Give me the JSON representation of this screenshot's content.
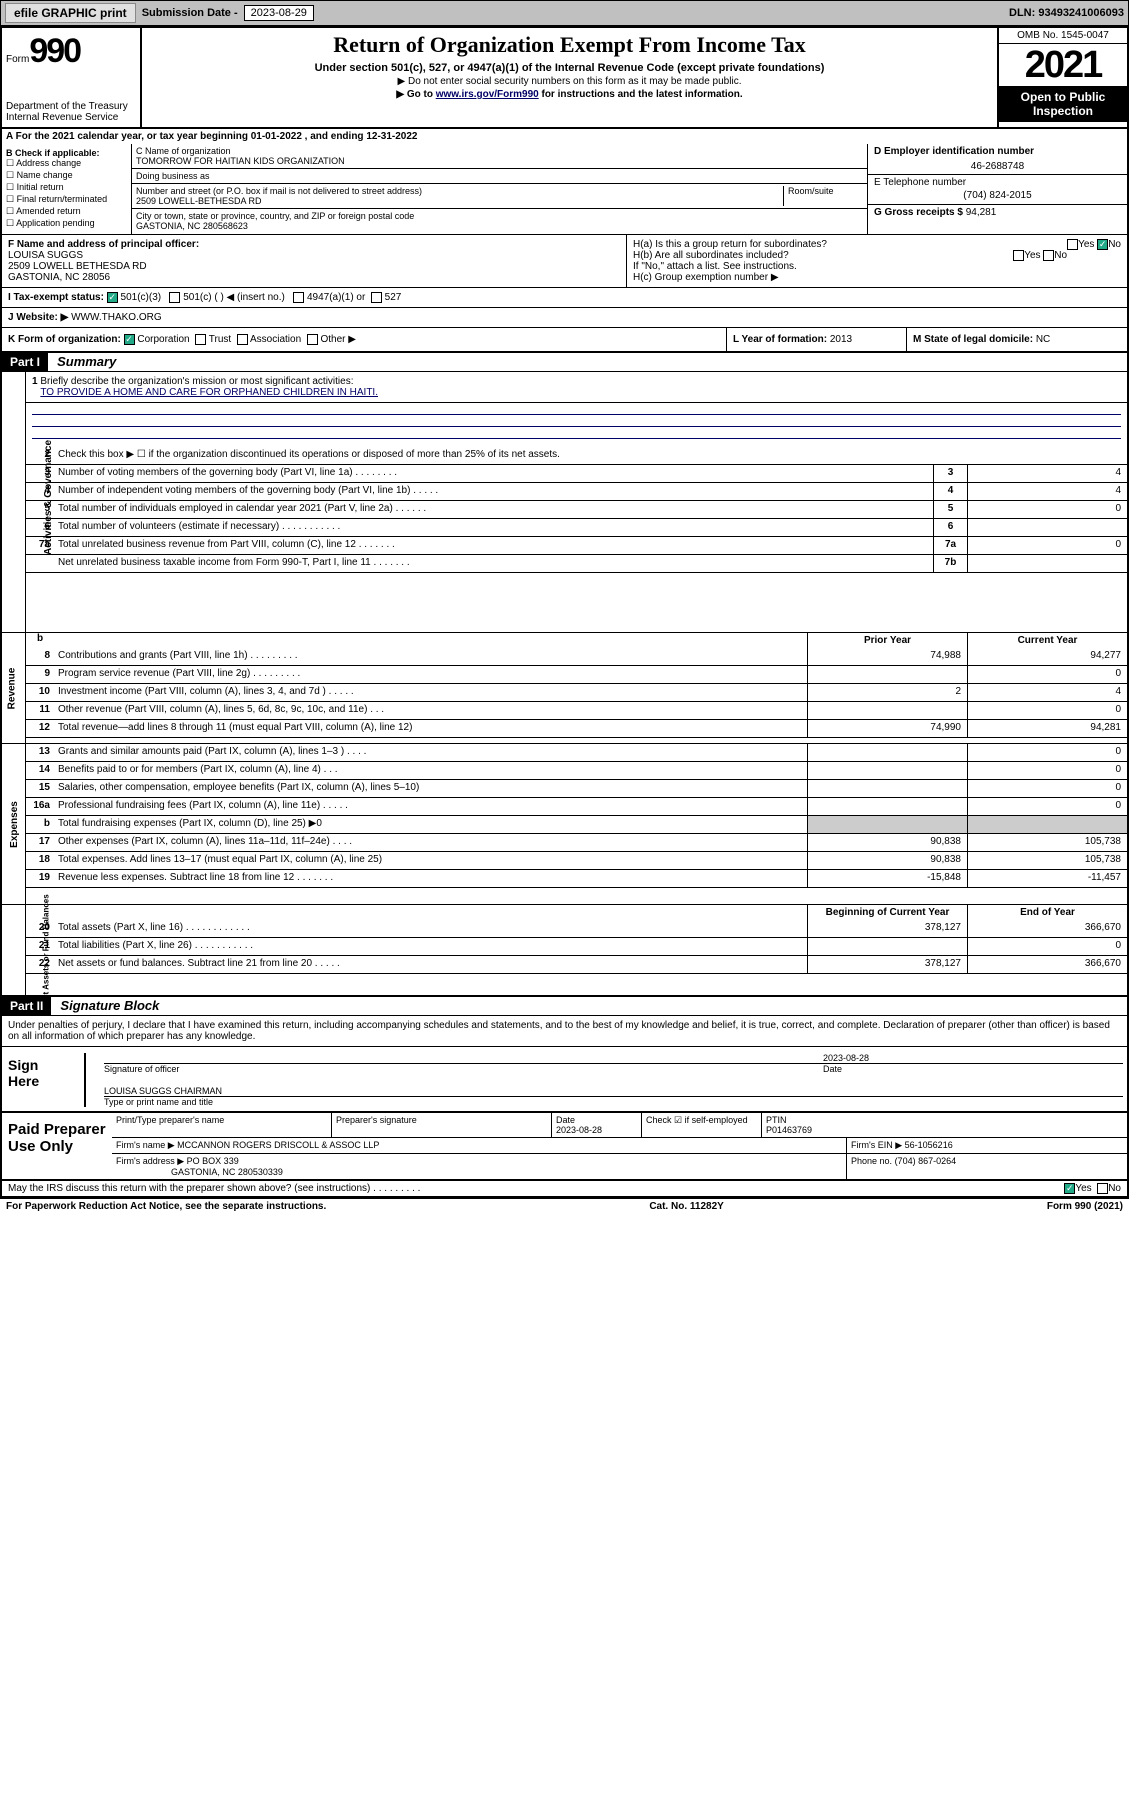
{
  "topbar": {
    "efile": "efile GRAPHIC print",
    "sub_label": "Submission Date - ",
    "sub_date": "2023-08-29",
    "dln": "DLN: 93493241006093"
  },
  "header": {
    "form_small": "Form",
    "form_big": "990",
    "dept": "Department of the Treasury",
    "irs": "Internal Revenue Service",
    "title": "Return of Organization Exempt From Income Tax",
    "sub": "Under section 501(c), 527, or 4947(a)(1) of the Internal Revenue Code (except private foundations)",
    "note1": "▶ Do not enter social security numbers on this form as it may be made public.",
    "note2a": "▶ Go to ",
    "note2link": "www.irs.gov/Form990",
    "note2b": " for instructions and the latest information.",
    "omb": "OMB No. 1545-0047",
    "year": "2021",
    "inspect": "Open to Public Inspection"
  },
  "a": {
    "text": "A For the 2021 calendar year, or tax year beginning 01-01-2022   , and ending 12-31-2022"
  },
  "b": {
    "label": "B Check if applicable:",
    "opts": [
      "Address change",
      "Name change",
      "Initial return",
      "Final return/terminated",
      "Amended return",
      "Application pending"
    ]
  },
  "c": {
    "name_label": "C Name of organization",
    "name": "TOMORROW FOR HAITIAN KIDS ORGANIZATION",
    "dba_label": "Doing business as",
    "street_label": "Number and street (or P.O. box if mail is not delivered to street address)",
    "room_label": "Room/suite",
    "street": "2509 LOWELL-BETHESDA RD",
    "city_label": "City or town, state or province, country, and ZIP or foreign postal code",
    "city": "GASTONIA, NC 280568623"
  },
  "d": {
    "label": "D Employer identification number",
    "value": "46-2688748"
  },
  "e": {
    "label": "E Telephone number",
    "value": "(704) 824-2015"
  },
  "g": {
    "label": "G Gross receipts $",
    "value": "94,281"
  },
  "f": {
    "label": "F Name and address of principal officer:",
    "name": "LOUISA SUGGS",
    "addr1": "2509 LOWELL BETHESDA RD",
    "addr2": "GASTONIA, NC  28056"
  },
  "h": {
    "a": "H(a)  Is this a group return for subordinates?",
    "b": "H(b)  Are all subordinates included?",
    "b_note": "If \"No,\" attach a list. See instructions.",
    "c": "H(c)  Group exemption number ▶",
    "yes": "Yes",
    "no": "No"
  },
  "i": {
    "label": "I   Tax-exempt status:",
    "o1": "501(c)(3)",
    "o2": "501(c) (  ) ◀ (insert no.)",
    "o3": "4947(a)(1) or",
    "o4": "527"
  },
  "j": {
    "label": "J   Website: ▶",
    "value": "WWW.THAKO.ORG"
  },
  "k": {
    "label": "K Form of organization:",
    "o1": "Corporation",
    "o2": "Trust",
    "o3": "Association",
    "o4": "Other ▶"
  },
  "l": {
    "label": "L Year of formation:",
    "value": "2013"
  },
  "m": {
    "label": "M State of legal domicile:",
    "value": "NC"
  },
  "part1": {
    "tag": "Part I",
    "title": "Summary"
  },
  "summary": {
    "q1": "Briefly describe the organization's mission or most significant activities:",
    "mission": "TO PROVIDE A HOME AND CARE FOR ORPHANED CHILDREN IN HAITI.",
    "q2": "Check this box ▶ ☐  if the organization discontinued its operations or disposed of more than 25% of its net assets.",
    "lines": [
      {
        "n": "3",
        "d": "Number of voting members of the governing body (Part VI, line 1a)  .    .    .    .    .    .    .    .",
        "bn": "3",
        "v": "4"
      },
      {
        "n": "4",
        "d": "Number of independent voting members of the governing body (Part VI, line 1b)  .    .    .    .    .",
        "bn": "4",
        "v": "4"
      },
      {
        "n": "5",
        "d": "Total number of individuals employed in calendar year 2021 (Part V, line 2a)  .    .    .    .    .    .",
        "bn": "5",
        "v": "0"
      },
      {
        "n": "6",
        "d": "Total number of volunteers (estimate if necessary)  .    .    .    .    .    .    .    .    .    .    .",
        "bn": "6",
        "v": ""
      },
      {
        "n": "7a",
        "d": "Total unrelated business revenue from Part VIII, column (C), line 12  .    .    .    .    .    .    .",
        "bn": "7a",
        "v": "0"
      },
      {
        "n": "",
        "d": "Net unrelated business taxable income from Form 990-T, Part I, line 11  .    .    .    .    .    .    .",
        "bn": "7b",
        "v": ""
      }
    ],
    "col_prior": "Prior Year",
    "col_current": "Current Year",
    "rev": [
      {
        "n": "8",
        "d": "Contributions and grants (Part VIII, line 1h)  .    .    .    .    .    .    .    .    .",
        "p": "74,988",
        "c": "94,277"
      },
      {
        "n": "9",
        "d": "Program service revenue (Part VIII, line 2g)  .    .    .    .    .    .    .    .    .",
        "p": "",
        "c": "0"
      },
      {
        "n": "10",
        "d": "Investment income (Part VIII, column (A), lines 3, 4, and 7d )  .    .    .    .    .",
        "p": "2",
        "c": "4"
      },
      {
        "n": "11",
        "d": "Other revenue (Part VIII, column (A), lines 5, 6d, 8c, 9c, 10c, and 11e)  .    .    .",
        "p": "",
        "c": "0"
      },
      {
        "n": "12",
        "d": "Total revenue—add lines 8 through 11 (must equal Part VIII, column (A), line 12)",
        "p": "74,990",
        "c": "94,281"
      }
    ],
    "exp": [
      {
        "n": "13",
        "d": "Grants and similar amounts paid (Part IX, column (A), lines 1–3 )  .    .    .    .",
        "p": "",
        "c": "0"
      },
      {
        "n": "14",
        "d": "Benefits paid to or for members (Part IX, column (A), line 4)  .    .    .",
        "p": "",
        "c": "0"
      },
      {
        "n": "15",
        "d": "Salaries, other compensation, employee benefits (Part IX, column (A), lines 5–10)",
        "p": "",
        "c": "0"
      },
      {
        "n": "16a",
        "d": "Professional fundraising fees (Part IX, column (A), line 11e)  .    .    .    .    .",
        "p": "",
        "c": "0"
      },
      {
        "n": "b",
        "d": "Total fundraising expenses (Part IX, column (D), line 25)  ▶0",
        "p": "shade",
        "c": "shade"
      },
      {
        "n": "17",
        "d": "Other expenses (Part IX, column (A), lines 11a–11d, 11f–24e)  .    .    .    .",
        "p": "90,838",
        "c": "105,738"
      },
      {
        "n": "18",
        "d": "Total expenses. Add lines 13–17 (must equal Part IX, column (A), line 25)",
        "p": "90,838",
        "c": "105,738"
      },
      {
        "n": "19",
        "d": "Revenue less expenses. Subtract line 18 from line 12  .    .    .    .    .    .    .",
        "p": "-15,848",
        "c": "-11,457"
      }
    ],
    "col_boy": "Beginning of Current Year",
    "col_eoy": "End of Year",
    "net": [
      {
        "n": "20",
        "d": "Total assets (Part X, line 16)  .    .    .    .    .    .    .    .    .    .    .    .",
        "p": "378,127",
        "c": "366,670"
      },
      {
        "n": "21",
        "d": "Total liabilities (Part X, line 26)  .    .    .    .    .    .    .    .    .    .    .",
        "p": "",
        "c": "0"
      },
      {
        "n": "22",
        "d": "Net assets or fund balances. Subtract line 21 from line 20  .    .    .    .    .",
        "p": "378,127",
        "c": "366,670"
      }
    ],
    "vtabs": {
      "gov": "Activities & Governance",
      "rev": "Revenue",
      "exp": "Expenses",
      "net": "Net Assets or Fund Balances"
    }
  },
  "part2": {
    "tag": "Part II",
    "title": "Signature Block"
  },
  "sig": {
    "intro": "Under penalties of perjury, I declare that I have examined this return, including accompanying schedules and statements, and to the best of my knowledge and belief, it is true, correct, and complete. Declaration of preparer (other than officer) is based on all information of which preparer has any knowledge.",
    "sign_here": "Sign Here",
    "sig_officer": "Signature of officer",
    "date_label": "Date",
    "date": "2023-08-28",
    "name_title": "LOUISA SUGGS CHAIRMAN",
    "type_label": "Type or print name and title"
  },
  "paid": {
    "label": "Paid Preparer Use Only",
    "h1": "Print/Type preparer's name",
    "h2": "Preparer's signature",
    "h3": "Date",
    "h3v": "2023-08-28",
    "h4": "Check ☑ if self-employed",
    "h5": "PTIN",
    "h5v": "P01463769",
    "firm_name_label": "Firm's name     ▶",
    "firm_name": "MCCANNON ROGERS DRISCOLL & ASSOC LLP",
    "firm_ein_label": "Firm's EIN ▶",
    "firm_ein": "56-1056216",
    "firm_addr_label": "Firm's address ▶",
    "firm_addr1": "PO BOX 339",
    "firm_addr2": "GASTONIA, NC  280530339",
    "phone_label": "Phone no.",
    "phone": "(704) 867-0264"
  },
  "footer": {
    "discuss": "May the IRS discuss this return with the preparer shown above? (see instructions)  .    .    .    .    .    .    .    .    .",
    "yes": "Yes",
    "no": "No",
    "pra": "For Paperwork Reduction Act Notice, see the separate instructions.",
    "cat": "Cat. No. 11282Y",
    "form": "Form 990 (2021)"
  }
}
